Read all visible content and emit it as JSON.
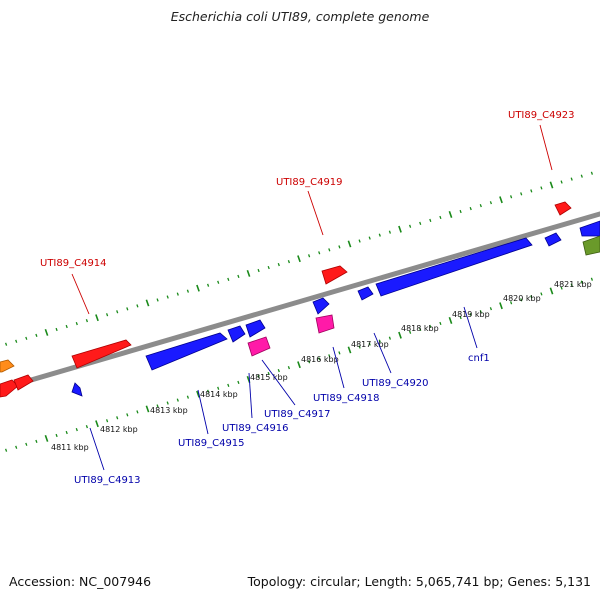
{
  "title": "Escherichia coli UTI89, complete genome",
  "footer": {
    "accession": "Accession: NC_007946",
    "summary": "Topology: circular; Length: 5,065,741 bp; Genes: 5,131"
  },
  "colors": {
    "backbone": "#8c8c8c",
    "tick": "#1a8a1a",
    "red_feature": "#ff1a1a",
    "blue_feature": "#1a1aff",
    "magenta_feature": "#ff1aa8",
    "olive_feature": "#6a9a2a",
    "orange_feature": "#ff8c1a",
    "upper_label": "#cc0000",
    "lower_label": "#0000aa"
  },
  "kbp_labels": [
    "4811 kbp",
    "4812 kbp",
    "4813 kbp",
    "4814 kbp",
    "4815 kbp",
    "4816 kbp",
    "4817 kbp",
    "4818 kbp",
    "4819 kbp",
    "4820 kbp",
    "4821 kbp"
  ],
  "upper_labels": [
    "UTI89_C4914",
    "UTI89_C4919",
    "UTI89_C4923"
  ],
  "lower_labels": [
    "UTI89_C4913",
    "UTI89_C4915",
    "UTI89_C4916",
    "UTI89_C4917",
    "UTI89_C4918",
    "UTI89_C4920",
    "cnf1"
  ]
}
